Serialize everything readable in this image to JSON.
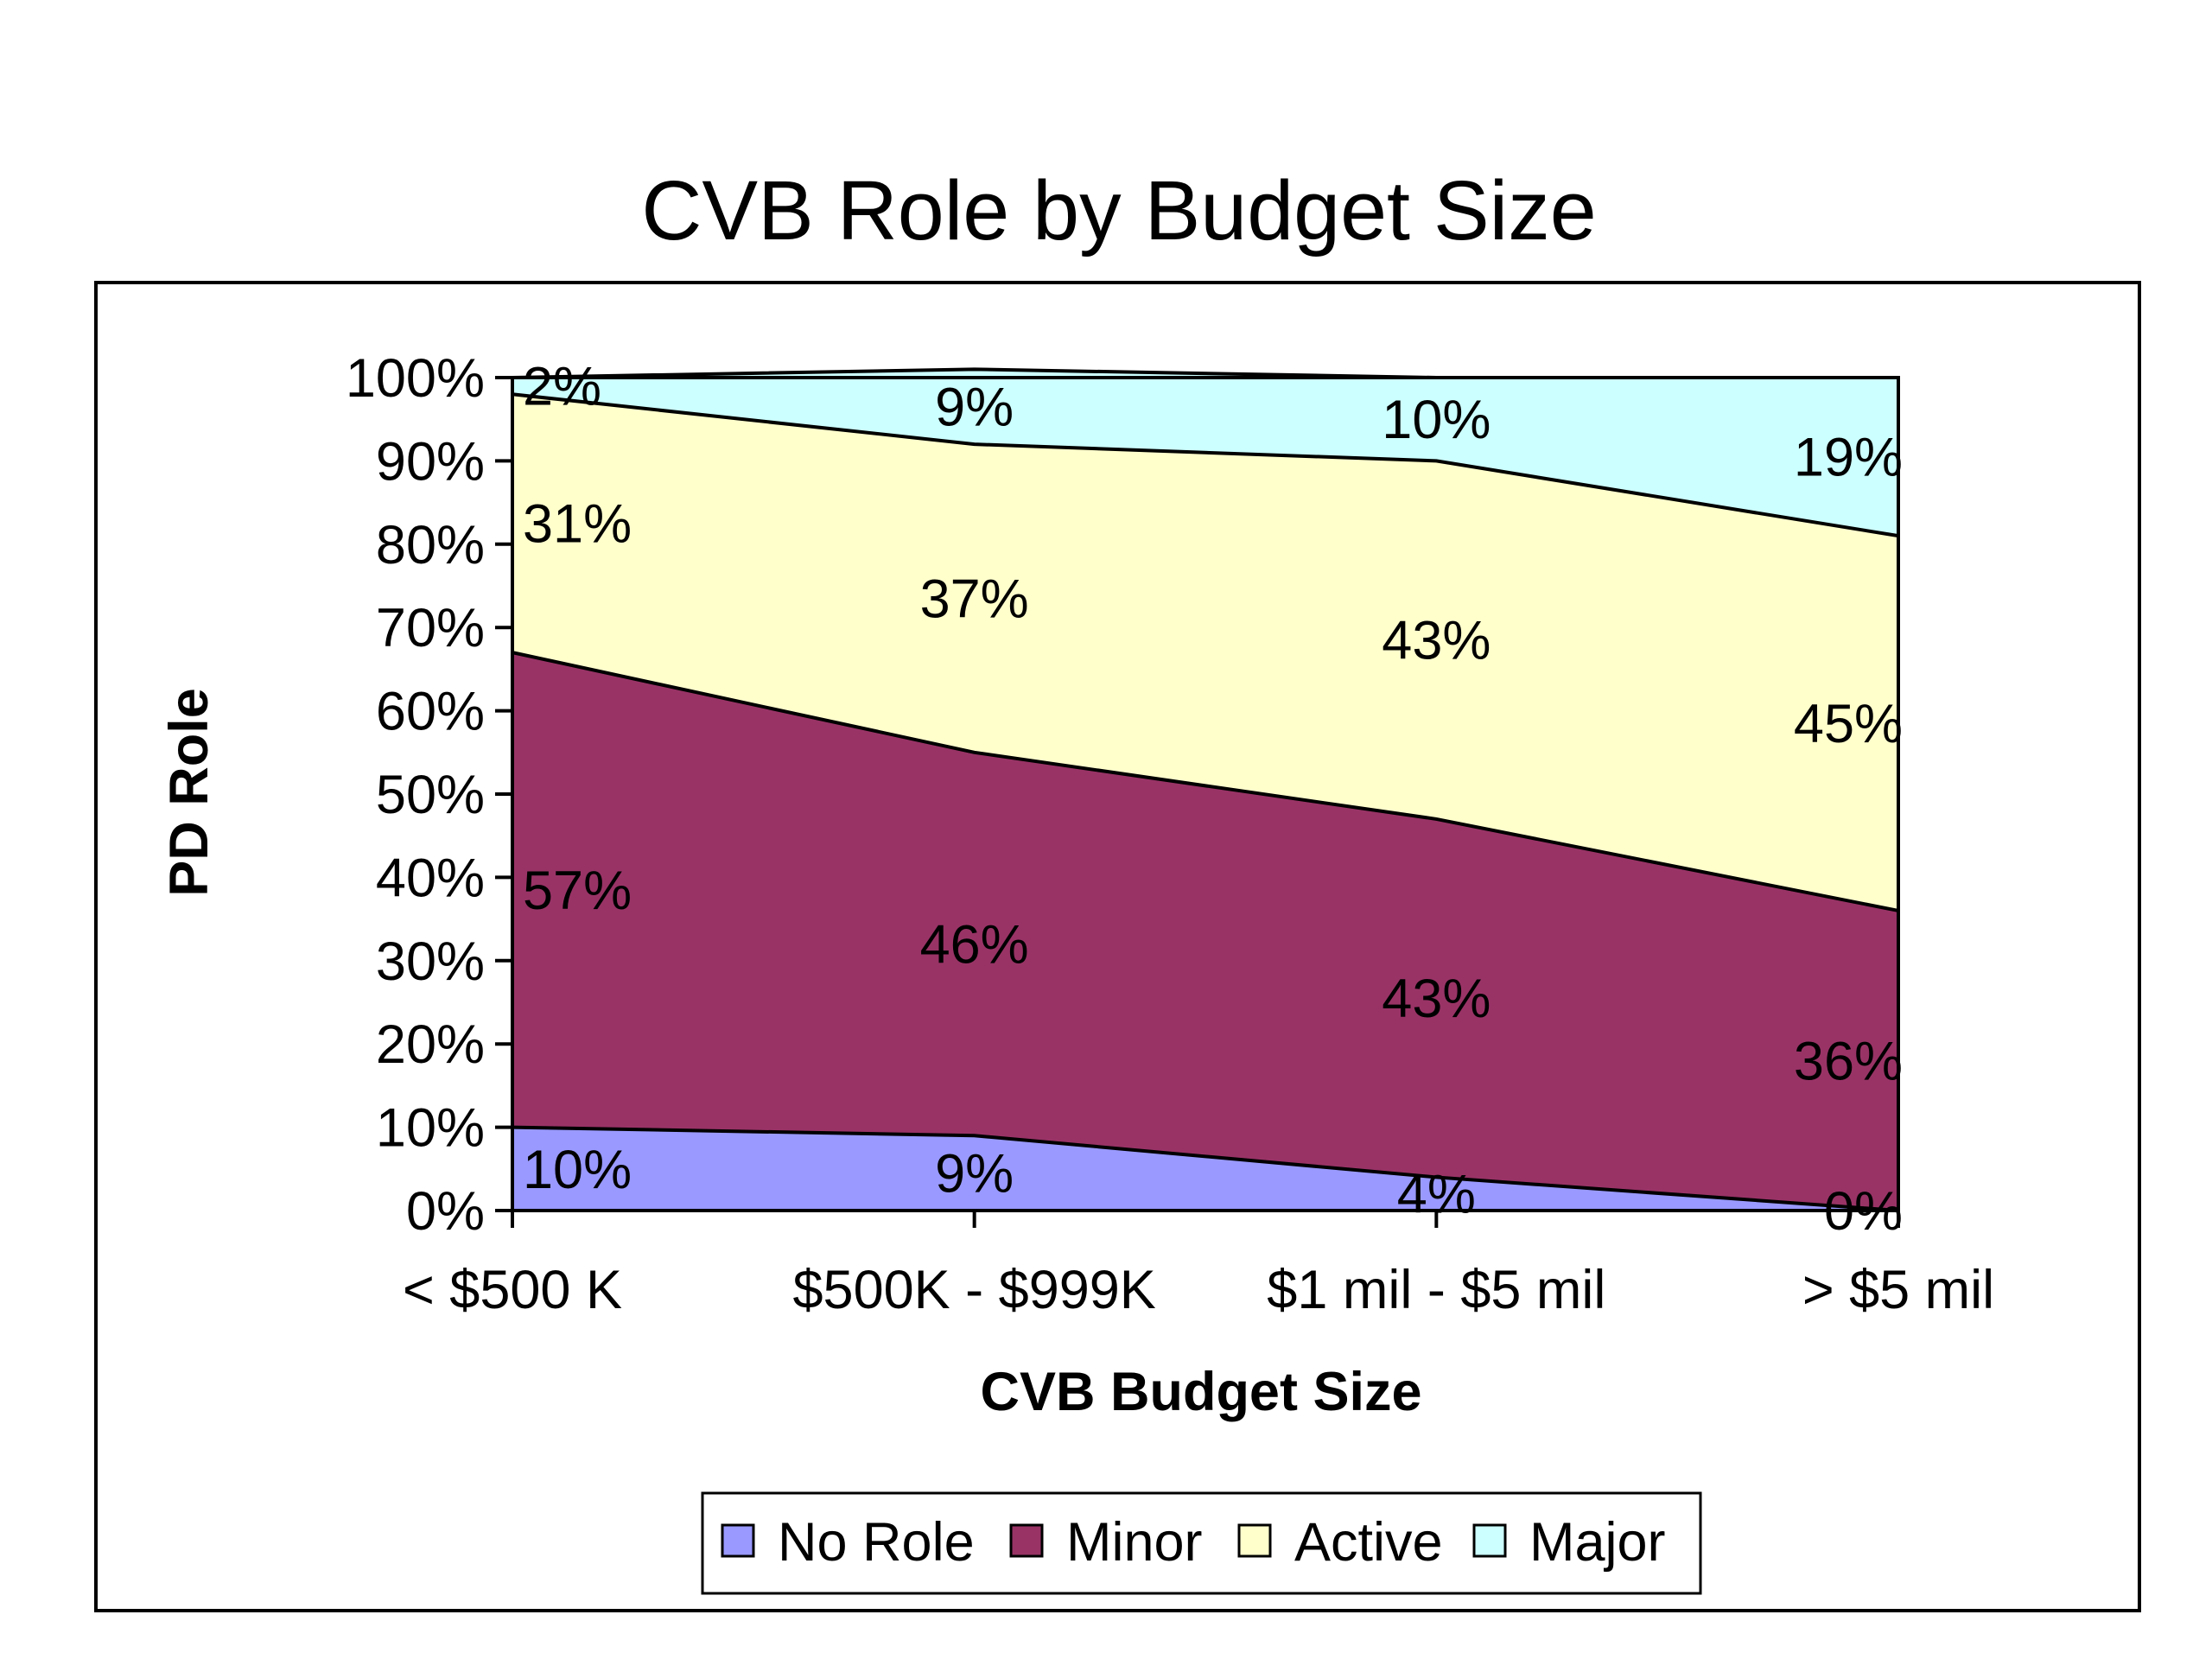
{
  "chart_data": {
    "type": "area",
    "stacked": "percent",
    "title": "CVB Role by Budget Size",
    "xlabel": "CVB Budget Size",
    "ylabel": "PD Role",
    "categories": [
      "< $500 K",
      "$500K - $999K",
      "$1 mil - $5 mil",
      "> $5 mil"
    ],
    "ylim": [
      0,
      100
    ],
    "yticks": [
      "0%",
      "10%",
      "20%",
      "30%",
      "40%",
      "50%",
      "60%",
      "70%",
      "80%",
      "90%",
      "100%"
    ],
    "grid": false,
    "legend": "bottom",
    "series": [
      {
        "name": "No Role",
        "values": [
          10,
          9,
          4,
          0
        ],
        "labels": [
          "10%",
          "9%",
          "4%",
          "0%"
        ],
        "color": "#9999ff"
      },
      {
        "name": "Minor",
        "values": [
          57,
          46,
          43,
          36
        ],
        "labels": [
          "57%",
          "46%",
          "43%",
          "36%"
        ],
        "color": "#993366"
      },
      {
        "name": "Active",
        "values": [
          31,
          37,
          43,
          45
        ],
        "labels": [
          "31%",
          "37%",
          "43%",
          "45%"
        ],
        "color": "#ffffcc"
      },
      {
        "name": "Major",
        "values": [
          2,
          9,
          10,
          19
        ],
        "labels": [
          "2%",
          "9%",
          "10%",
          "19%"
        ],
        "color": "#ccffff"
      }
    ]
  }
}
